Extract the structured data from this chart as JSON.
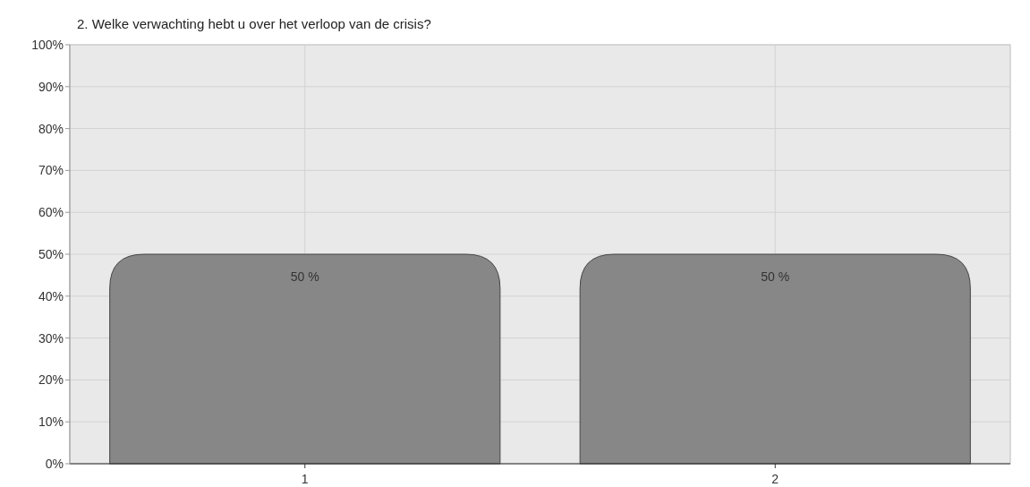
{
  "chart_data": {
    "type": "bar",
    "title": "2. Welke verwachting hebt u over het verloop van de crisis?",
    "categories": [
      "1",
      "2"
    ],
    "values": [
      50,
      50
    ],
    "color": "#878787",
    "value_labels": [
      "50 %",
      "50 %"
    ],
    "ylim": [
      0,
      100
    ],
    "yticks": [
      {
        "value": 0,
        "label": "0%"
      },
      {
        "value": 10,
        "label": "10%"
      },
      {
        "value": 20,
        "label": "20%"
      },
      {
        "value": 30,
        "label": "30%"
      },
      {
        "value": 40,
        "label": "40%"
      },
      {
        "value": 50,
        "label": "50%"
      },
      {
        "value": 60,
        "label": "60%"
      },
      {
        "value": 70,
        "label": "70%"
      },
      {
        "value": 80,
        "label": "80%"
      },
      {
        "value": 90,
        "label": "90%"
      },
      {
        "value": 100,
        "label": "100%"
      }
    ],
    "grid": true
  }
}
